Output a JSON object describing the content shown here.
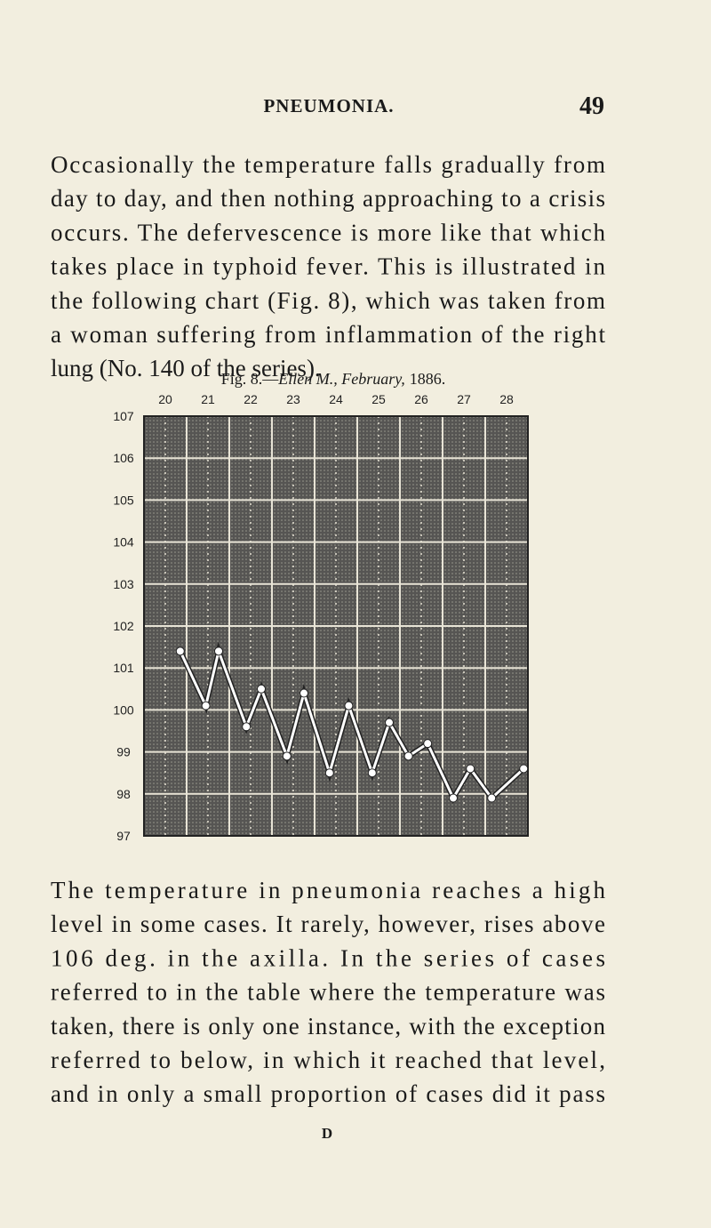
{
  "header": {
    "title": "PNEUMONIA.",
    "page": "49"
  },
  "paragraphs": [
    [
      "Occasionally the temperature falls gradually from",
      "day to day, and then nothing approaching to a crisis",
      "occurs. The defervescence is more like that which",
      "takes place in typhoid fever. This is illustrated in",
      "the following chart (Fig. 8), which was taken from",
      "a woman suffering from inflammation of the right",
      "lung (No. 140 of the series)."
    ],
    [
      "The temperature in pneumonia reaches a high",
      "level in some cases. It rarely, however, rises above",
      "106 deg. in the axilla. In the series of cases",
      "referred to in the table where the temperature was",
      "taken, there is only one instance, with the exception",
      "referred to below, in which it reached that level,",
      "and in only a small proportion of cases did it pass"
    ]
  ],
  "footer": "D",
  "chart_data": {
    "type": "line",
    "caption": {
      "label": "Fig. 8.—",
      "italic": "Ellen M., February,",
      "year": "1886."
    },
    "x": [
      20.85,
      21.45,
      21.75,
      22.4,
      22.75,
      23.35,
      23.75,
      24.35,
      24.8,
      25.35,
      25.75,
      26.2,
      26.65,
      27.25,
      27.65,
      28.15,
      28.9
    ],
    "values": [
      101.4,
      100.1,
      101.4,
      99.6,
      100.5,
      98.9,
      100.4,
      98.5,
      100.1,
      98.5,
      99.7,
      98.9,
      99.2,
      97.9,
      98.6,
      97.9,
      98.6
    ],
    "color": "#ffffff",
    "xlim": [
      20,
      29
    ],
    "xticks": [
      {
        "value": 20.5,
        "label": "20"
      },
      {
        "value": 21.5,
        "label": "21"
      },
      {
        "value": 22.5,
        "label": "22"
      },
      {
        "value": 23.5,
        "label": "23"
      },
      {
        "value": 24.5,
        "label": "24"
      },
      {
        "value": 25.5,
        "label": "25"
      },
      {
        "value": 26.5,
        "label": "26"
      },
      {
        "value": 27.5,
        "label": "27"
      },
      {
        "value": 28.5,
        "label": "28"
      }
    ],
    "ylim": [
      97,
      107
    ],
    "yticks": [
      97,
      98,
      99,
      100,
      101,
      102,
      103,
      104,
      105,
      106,
      107
    ],
    "grid": true
  }
}
